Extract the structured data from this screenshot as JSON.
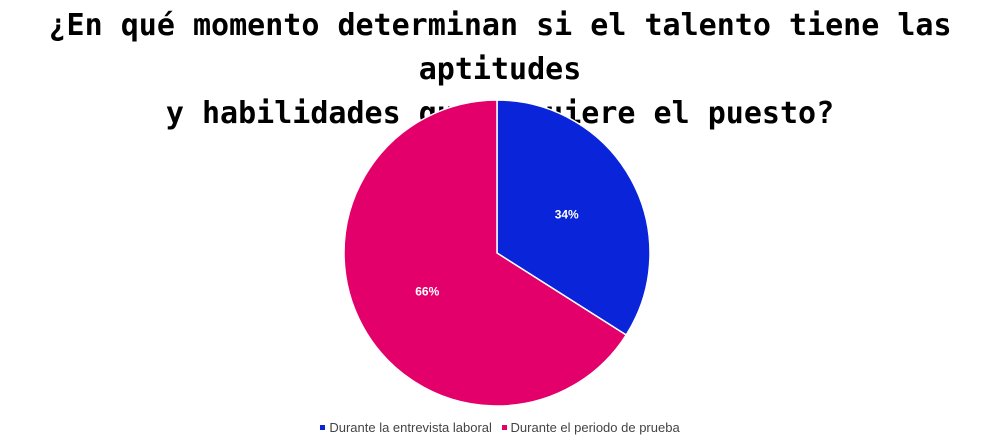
{
  "chart_data": {
    "type": "pie",
    "title_lines": [
      "¿En qué momento determinan si el talento tiene las aptitudes",
      "y habilidades que requiere el puesto?"
    ],
    "categories": [
      "Durante la entrevista laboral",
      "Durante el periodo de prueba"
    ],
    "values": [
      34,
      66
    ],
    "labels": [
      "34%",
      "66%"
    ],
    "colors": [
      "#0a24d9",
      "#e4006a"
    ],
    "legend_position": "bottom"
  }
}
